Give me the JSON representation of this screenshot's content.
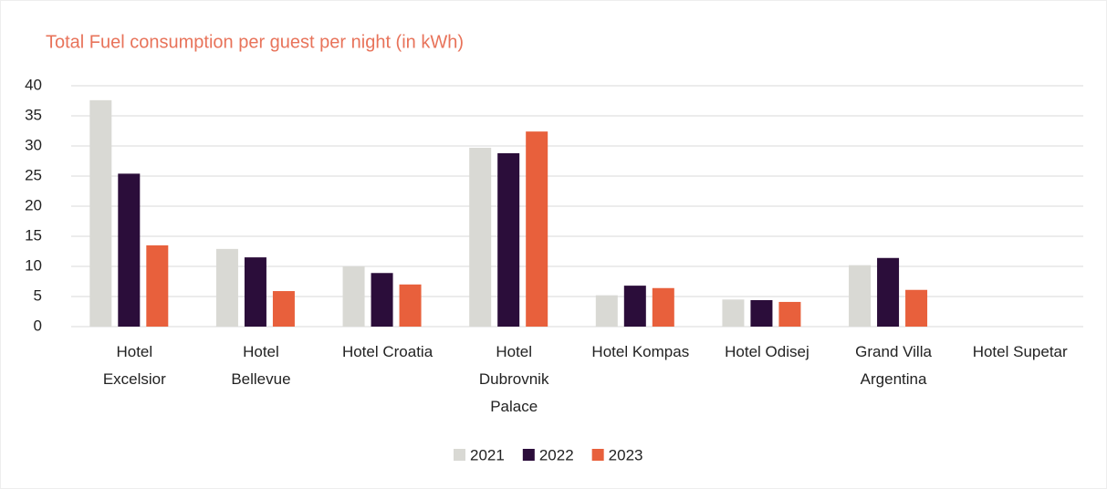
{
  "chart_data": {
    "type": "bar",
    "title": "Total Fuel consumption per guest per night (in kWh)",
    "categories": [
      "Hotel Excelsior",
      "Hotel Bellevue",
      "Hotel Croatia",
      "Hotel Dubrovnik Palace",
      "Hotel Kompas",
      "Hotel Odisej",
      "Grand Villa Argentina",
      "Hotel Supetar"
    ],
    "series": [
      {
        "name": "2021",
        "color": "#d9d9d4",
        "values": [
          37.6,
          12.9,
          10.0,
          29.7,
          5.2,
          4.5,
          10.2,
          null
        ]
      },
      {
        "name": "2022",
        "color": "#2b0d3a",
        "values": [
          25.4,
          11.5,
          8.9,
          28.8,
          6.8,
          4.4,
          11.4,
          null
        ]
      },
      {
        "name": "2023",
        "color": "#e8603c",
        "values": [
          13.5,
          5.9,
          7.0,
          32.4,
          6.4,
          4.1,
          6.1,
          null
        ]
      }
    ],
    "ylim": [
      0,
      40
    ],
    "yticks": [
      0,
      5,
      10,
      15,
      20,
      25,
      30,
      35,
      40
    ],
    "grid": true,
    "legend": "bottom"
  }
}
